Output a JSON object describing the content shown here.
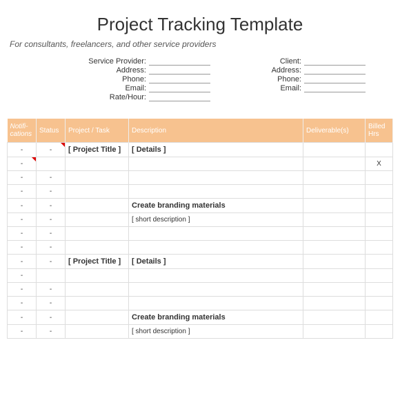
{
  "title": "Project Tracking Template",
  "subtitle": "For consultants, freelancers, and other service providers",
  "meta": {
    "left": [
      {
        "label": "Service Provider:"
      },
      {
        "label": "Address:"
      },
      {
        "label": "Phone:"
      },
      {
        "label": "Email:"
      },
      {
        "label": "Rate/Hour:"
      }
    ],
    "right": [
      {
        "label": "Client:"
      },
      {
        "label": "Address:"
      },
      {
        "label": "Phone:"
      },
      {
        "label": "Email:"
      }
    ]
  },
  "columns": [
    {
      "key": "notif",
      "label": "Notifi-cations"
    },
    {
      "key": "status",
      "label": "Status"
    },
    {
      "key": "project",
      "label": "Project / Task"
    },
    {
      "key": "desc",
      "label": "Description"
    },
    {
      "key": "deliv",
      "label": "Deliverable(s)"
    },
    {
      "key": "billed",
      "label": "Billed Hrs"
    }
  ],
  "rows": [
    {
      "type": "header-row",
      "notif": "-",
      "status": "-",
      "project": "[ Project Title ]",
      "desc": "[ Details ]",
      "tall": true,
      "note_status": true
    },
    {
      "type": "data",
      "notif": "-",
      "billed": "X",
      "note_notif": true
    },
    {
      "type": "data",
      "notif": "-",
      "status": "-"
    },
    {
      "type": "data",
      "notif": "-",
      "status": "-"
    },
    {
      "type": "section",
      "notif": "-",
      "status": "-",
      "desc": "Create branding materials",
      "tall": true
    },
    {
      "type": "data",
      "notif": "-",
      "status": "-",
      "desc": "[ short description ]"
    },
    {
      "type": "data",
      "notif": "-",
      "status": "-"
    },
    {
      "type": "data",
      "notif": "-",
      "status": "-"
    },
    {
      "type": "header-row",
      "notif": "-",
      "status": "-",
      "project": "[ Project Title ]",
      "desc": "[ Details ]",
      "tall": true
    },
    {
      "type": "data",
      "notif": "-"
    },
    {
      "type": "data",
      "notif": "-",
      "status": "-"
    },
    {
      "type": "data",
      "notif": "-",
      "status": "-"
    },
    {
      "type": "section",
      "notif": "-",
      "status": "-",
      "desc": "Create branding materials",
      "tall": true
    },
    {
      "type": "data",
      "notif": "-",
      "status": "-",
      "desc": "[ short description ]"
    }
  ],
  "colors": {
    "header_bg": "#f7c28f",
    "section_bg": "#fbe5cc",
    "border": "#dddddd",
    "note": "#d00000"
  }
}
